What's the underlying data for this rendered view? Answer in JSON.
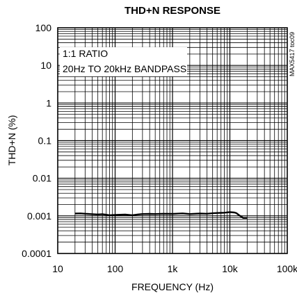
{
  "chart_data": {
    "type": "line",
    "title": "THD+N RESPONSE",
    "xlabel": "FREQUENCY (Hz)",
    "ylabel": "THD+N (%)",
    "x_scale": "log",
    "y_scale": "log",
    "xlim": [
      10,
      100000
    ],
    "ylim": [
      0.0001,
      100
    ],
    "x_ticks": [
      "10",
      "100",
      "1k",
      "10k",
      "100k"
    ],
    "y_ticks": [
      "100",
      "10",
      "1",
      "0.1",
      "0.01",
      "0.001",
      "0.0001"
    ],
    "grid": true,
    "annotations": [
      "1:1 RATIO",
      "20Hz TO 20kHz BANDPASS"
    ],
    "figure_id": "MAX5417 toc09",
    "series": [
      {
        "x": [
          20,
          25,
          30,
          40,
          50,
          60,
          70,
          80,
          100,
          150,
          200,
          250,
          300,
          400,
          500,
          700,
          1000,
          1500,
          2000,
          3000,
          4000,
          5000,
          6000,
          7000,
          8000,
          10000,
          12000,
          13000,
          15000,
          17000,
          20000
        ],
        "y": [
          0.00115,
          0.00116,
          0.00114,
          0.00111,
          0.00109,
          0.00111,
          0.00107,
          0.00104,
          0.00106,
          0.00108,
          0.00104,
          0.00109,
          0.00112,
          0.00113,
          0.00112,
          0.00114,
          0.00113,
          0.00116,
          0.00112,
          0.00115,
          0.00114,
          0.00117,
          0.00119,
          0.0012,
          0.00121,
          0.00126,
          0.00123,
          0.00118,
          0.001,
          0.00088,
          0.00088
        ]
      }
    ]
  }
}
